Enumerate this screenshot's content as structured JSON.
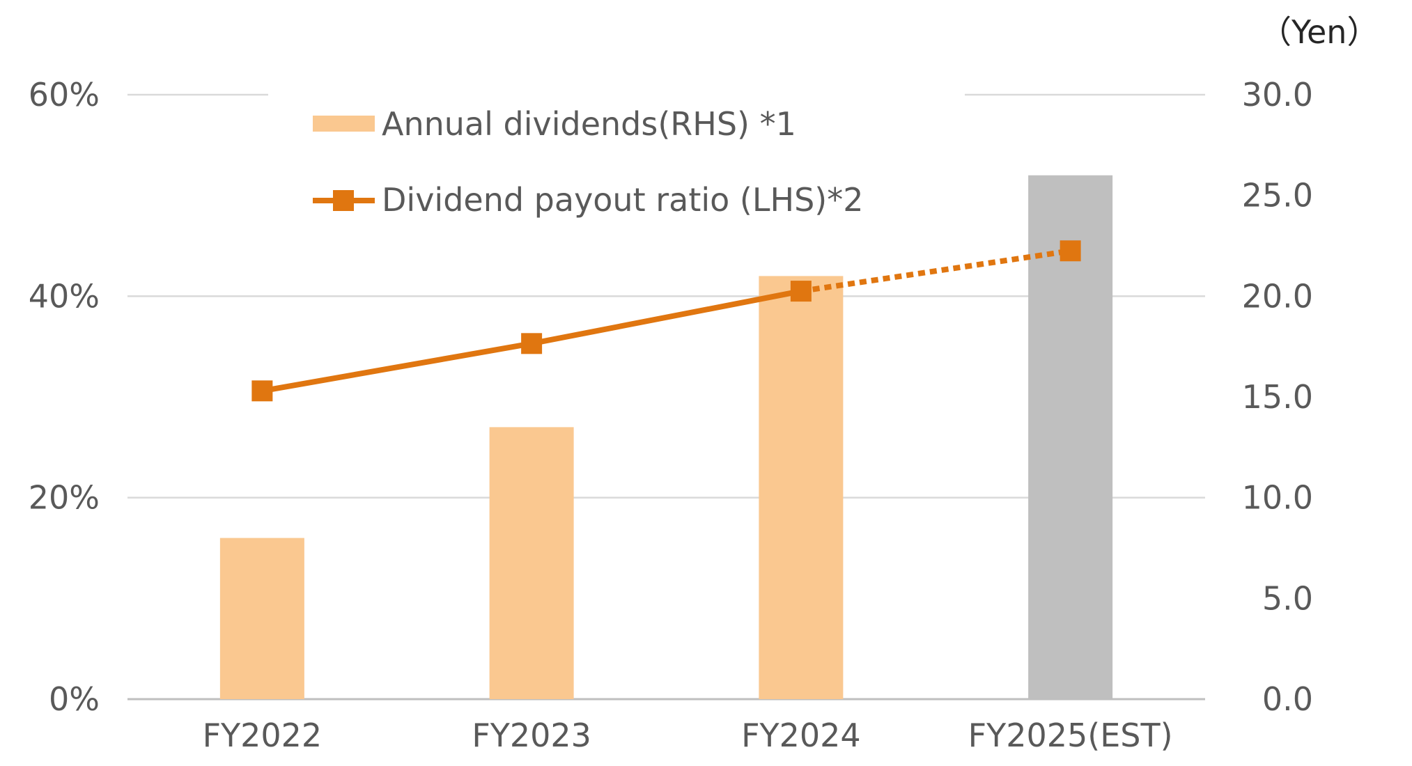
{
  "chart_data": {
    "type": "bar",
    "categories": [
      "FY2022",
      "FY2023",
      "FY2024",
      "FY2025(EST)"
    ],
    "y_left": {
      "ticks": [
        "0%",
        "20%",
        "40%",
        "60%"
      ],
      "range": [
        0,
        60
      ]
    },
    "y_right": {
      "unit_label": "（Yen）",
      "ticks": [
        "0.0",
        "5.0",
        "10.0",
        "15.0",
        "20.0",
        "25.0",
        "30.0"
      ],
      "range": [
        0,
        30
      ]
    },
    "series": [
      {
        "name": "Annual dividends(RHS) *1",
        "type": "bar",
        "axis": "right",
        "values": [
          8.0,
          13.5,
          21.0,
          26.0
        ],
        "colors": [
          "#FAC890",
          "#FAC890",
          "#FAC890",
          "#BFBFBF"
        ]
      },
      {
        "name": "Dividend payout ratio (LHS)*2",
        "type": "line",
        "axis": "left",
        "values": [
          30.6,
          35.3,
          40.5,
          44.5
        ],
        "dashed_last_segment": true,
        "color": "#E07610"
      }
    ],
    "grid": true,
    "legend_position": "top-center"
  }
}
